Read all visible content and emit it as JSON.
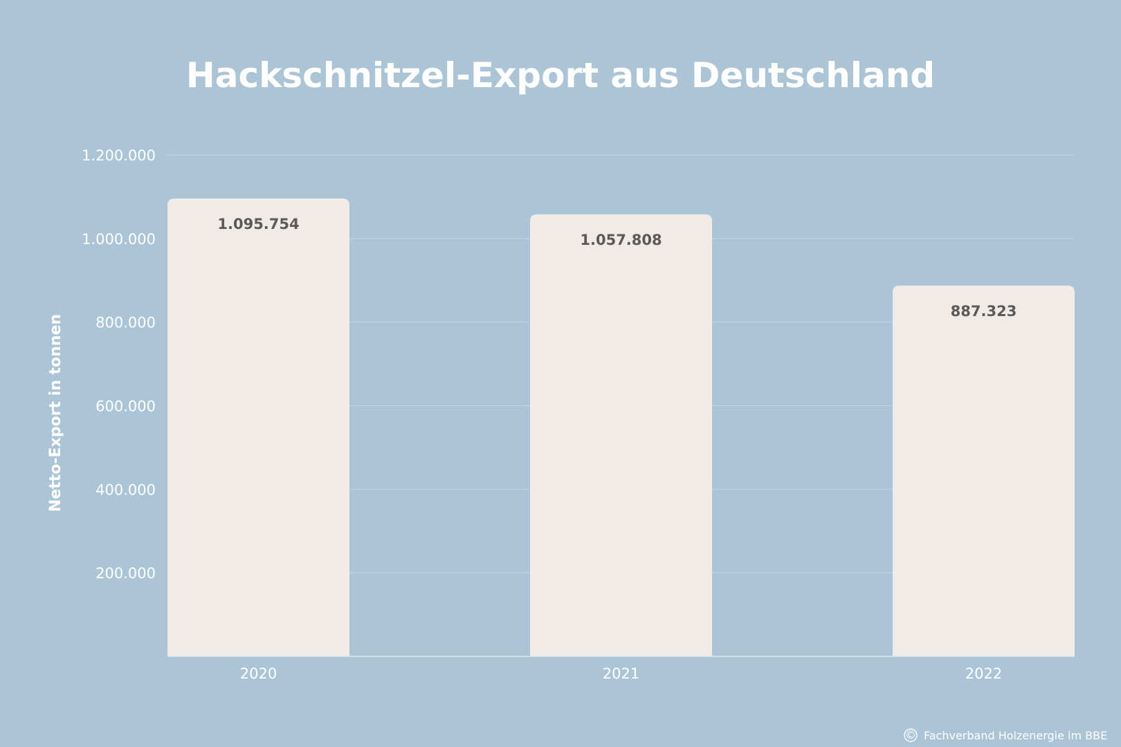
{
  "chart_data": {
    "type": "bar",
    "title": "Hackschnitzel-Export aus Deutschland",
    "xlabel": "",
    "ylabel": "Netto-Export in tonnen",
    "categories": [
      "2020",
      "2021",
      "2022"
    ],
    "values": [
      1095754,
      1057808,
      887323
    ],
    "value_labels": [
      "1.095.754",
      "1.057.808",
      "887.323"
    ],
    "ylim": [
      0,
      1200000
    ],
    "yticks": [
      200000,
      400000,
      600000,
      800000,
      1000000,
      1200000
    ],
    "ytick_labels": [
      "200.000",
      "400.000",
      "600.000",
      "800.000",
      "1.000.000",
      "1.200.000"
    ],
    "grid": true,
    "legend": "none"
  },
  "footer": {
    "copyright_symbol": "©",
    "text": "Fachverband Holzenergie im BBE"
  },
  "colors": {
    "background": "#abc5d6",
    "bar": "#f0ebe7",
    "text": "#ffffff",
    "value_text": "#5c5a58"
  }
}
